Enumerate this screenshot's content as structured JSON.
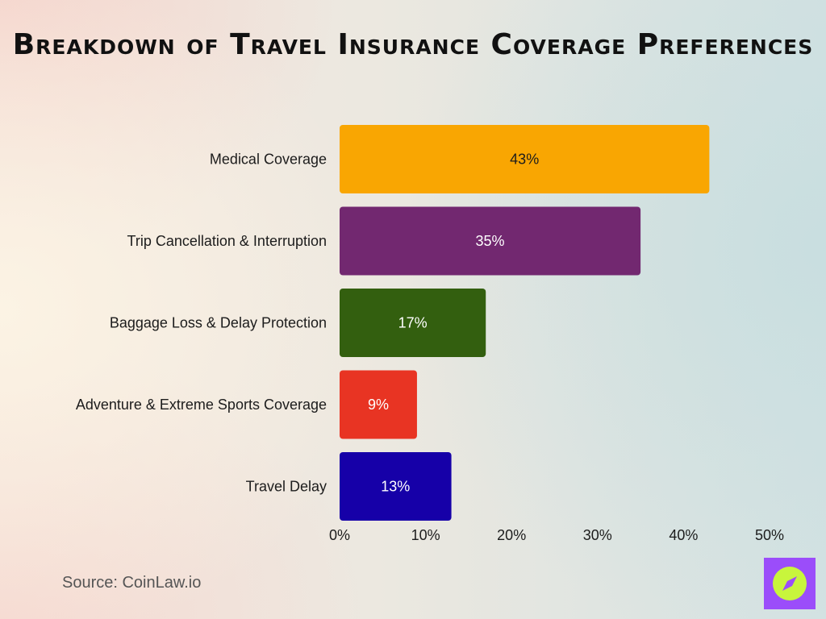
{
  "chart_data": {
    "type": "bar",
    "orientation": "horizontal",
    "title": "Breakdown of Travel Insurance Coverage Preferences",
    "categories": [
      "Medical Coverage",
      "Trip Cancellation & Interruption",
      "Baggage Loss & Delay Protection",
      "Adventure & Extreme Sports Coverage",
      "Travel Delay"
    ],
    "values": [
      43,
      35,
      17,
      9,
      13
    ],
    "value_labels": [
      "43%",
      "35%",
      "17%",
      "9%",
      "13%"
    ],
    "colors": [
      "#f9a602",
      "#722870",
      "#335f0f",
      "#e83423",
      "#1600a8"
    ],
    "label_colors": [
      "#1c1c1c",
      "#ffffff",
      "#ffffff",
      "#ffffff",
      "#ffffff"
    ],
    "xlim": [
      0,
      50
    ],
    "xticks": [
      0,
      10,
      20,
      30,
      40,
      50
    ],
    "xtick_labels": [
      "0%",
      "10%",
      "20%",
      "30%",
      "40%",
      "50%"
    ],
    "xlabel": "",
    "ylabel": "",
    "grid": false,
    "legend": "none"
  },
  "source": "Source: CoinLaw.io",
  "logo": {
    "icon": "compass-icon",
    "background_color": "#9b4dfa",
    "accent_color": "#c8f53c"
  }
}
